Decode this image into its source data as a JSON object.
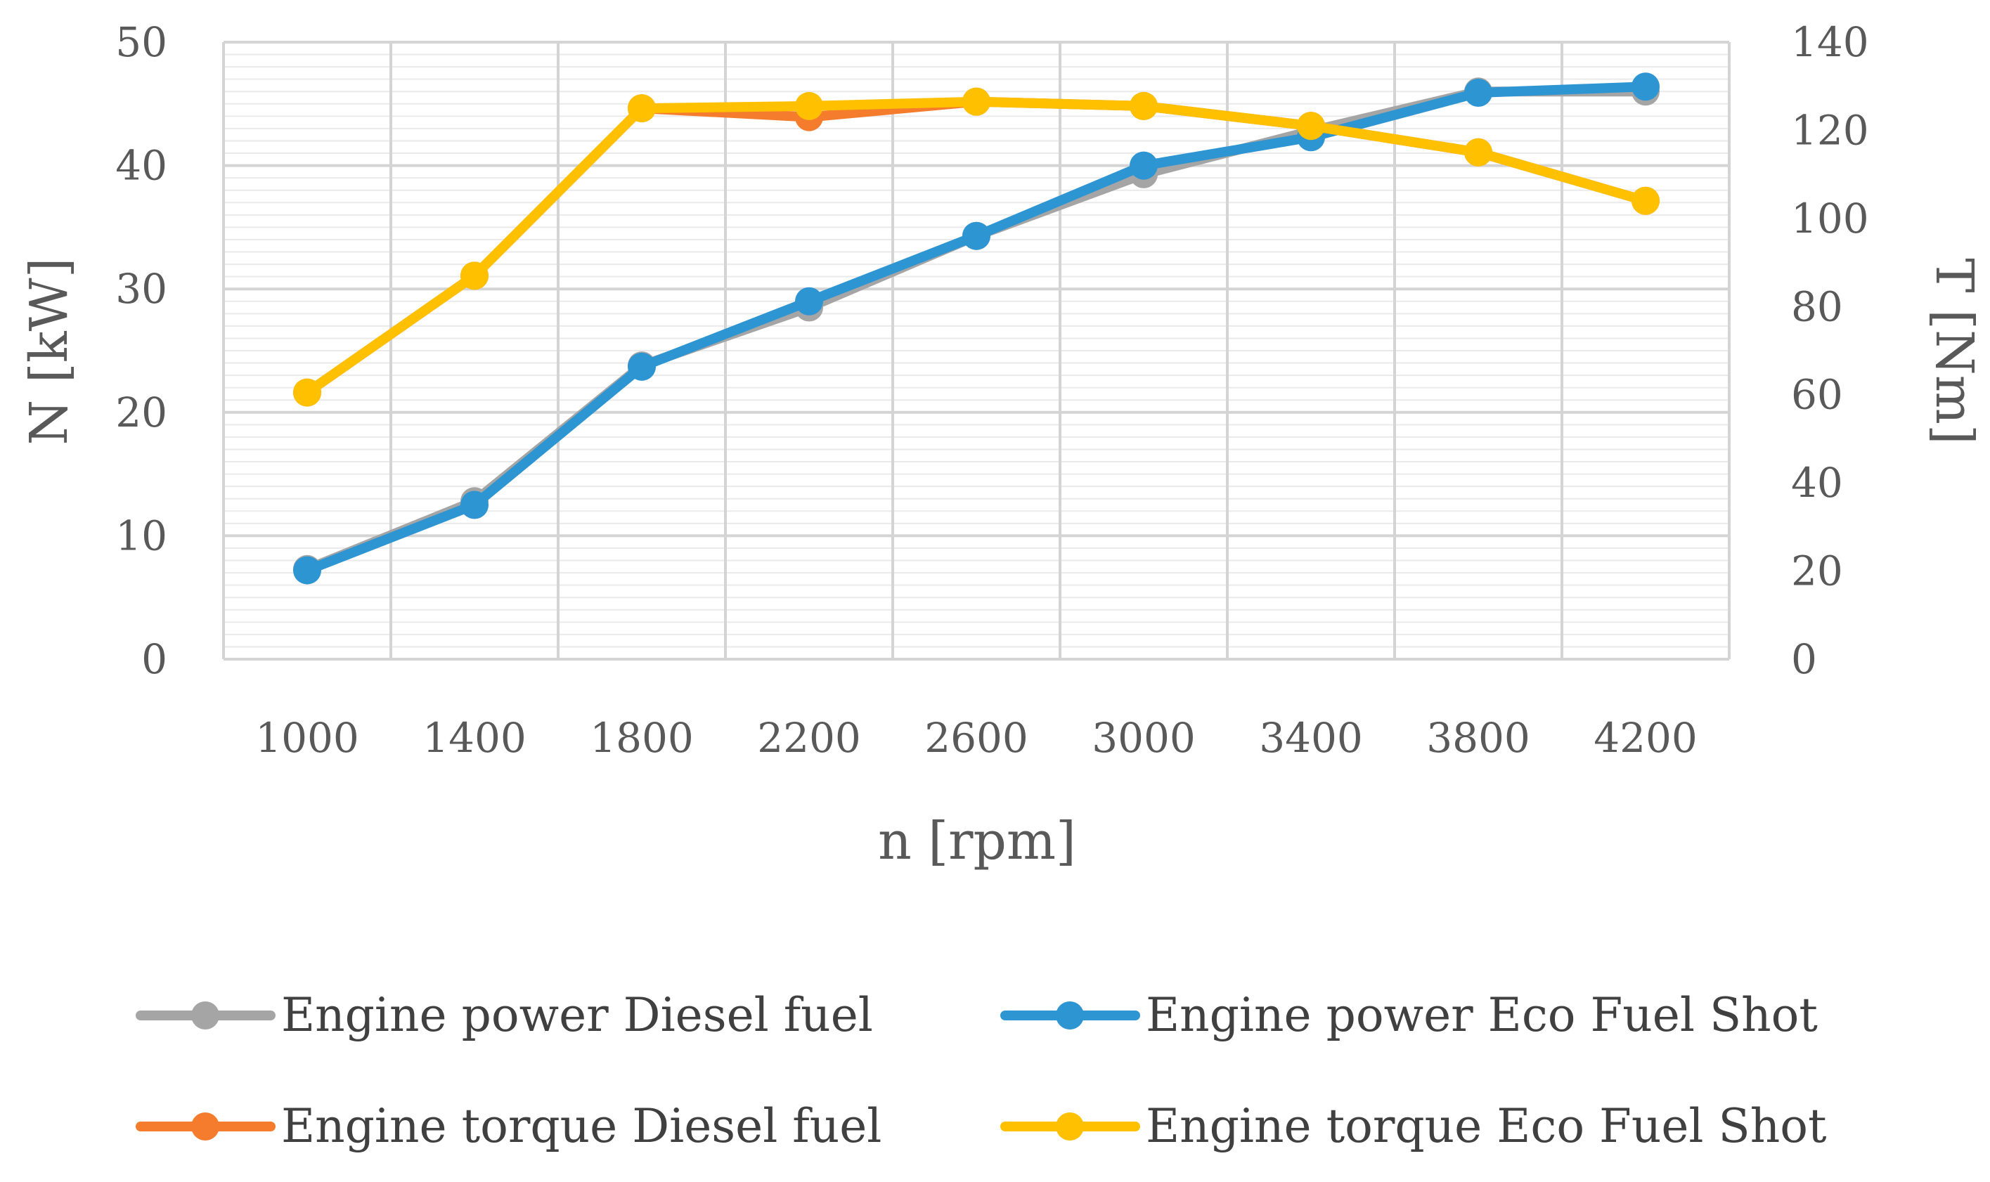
{
  "chart_data": {
    "type": "line",
    "title": "",
    "xlabel": "n [rpm]",
    "ylabel_left": "N [kW]",
    "ylabel_right": "T [Nm]",
    "categories": [
      "1000",
      "1400",
      "1800",
      "2200",
      "2600",
      "3000",
      "3400",
      "3800",
      "4200"
    ],
    "ylim_left": [
      0,
      50
    ],
    "yticks_left": [
      "0",
      "10",
      "20",
      "30",
      "40",
      "50"
    ],
    "ylim_right": [
      0,
      140
    ],
    "yticks_right": [
      "0",
      "20",
      "40",
      "60",
      "80",
      "100",
      "120",
      "140"
    ],
    "grid": true,
    "legend_position": "bottom",
    "series": [
      {
        "name": "Engine power Diesel fuel",
        "axis": "left",
        "color": "#A5A5A5",
        "values": [
          7.3,
          12.8,
          23.8,
          28.5,
          34.3,
          39.3,
          42.8,
          46.0,
          46.0
        ]
      },
      {
        "name": "Engine power Eco Fuel Shot",
        "axis": "left",
        "color": "#2E95D3",
        "values": [
          7.2,
          12.5,
          23.7,
          29.0,
          34.3,
          40.0,
          42.3,
          45.9,
          46.4
        ]
      },
      {
        "name": "Engine torque Diesel fuel",
        "axis": "right",
        "color": "#F47C2C",
        "values": [
          60.5,
          87,
          125,
          123,
          126.5,
          125.5,
          121,
          115,
          104
        ]
      },
      {
        "name": "Engine torque Eco Fuel Shot",
        "axis": "right",
        "color": "#FFC000",
        "values": [
          60.5,
          87,
          125,
          125.5,
          126.5,
          125.5,
          121,
          115,
          104
        ]
      }
    ]
  }
}
